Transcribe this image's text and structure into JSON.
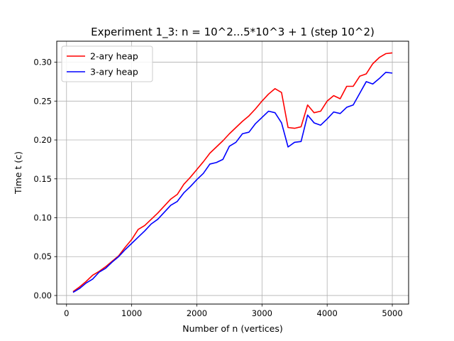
{
  "chart_data": {
    "type": "line",
    "title": "Experiment 1_3: n = 10^2...5*10^3 + 1 (step 10^2)",
    "xlabel": "Number of n (vertices)",
    "ylabel": "Time t (c)",
    "xlim": [
      -150,
      5250
    ],
    "ylim": [
      -0.011,
      0.327
    ],
    "xticks": [
      0,
      1000,
      2000,
      3000,
      4000,
      5000
    ],
    "yticks": [
      0.0,
      0.05,
      0.1,
      0.15,
      0.2,
      0.25,
      0.3
    ],
    "xtick_labels": [
      "0",
      "1000",
      "2000",
      "3000",
      "4000",
      "5000"
    ],
    "ytick_labels": [
      "0.00",
      "0.05",
      "0.10",
      "0.15",
      "0.20",
      "0.25",
      "0.30"
    ],
    "grid": true,
    "legend_position": "top-left",
    "x": [
      100,
      200,
      300,
      400,
      500,
      600,
      700,
      800,
      900,
      1000,
      1100,
      1200,
      1300,
      1400,
      1500,
      1600,
      1700,
      1800,
      1900,
      2000,
      2100,
      2200,
      2300,
      2400,
      2500,
      2600,
      2700,
      2800,
      2900,
      3000,
      3100,
      3200,
      3300,
      3400,
      3500,
      3600,
      3700,
      3800,
      3900,
      4000,
      4100,
      4200,
      4300,
      4400,
      4500,
      4600,
      4700,
      4800,
      4900,
      5000
    ],
    "series": [
      {
        "name": "2-ary heap",
        "color": "#ff0000",
        "values": [
          0.005,
          0.011,
          0.018,
          0.026,
          0.031,
          0.037,
          0.044,
          0.051,
          0.062,
          0.072,
          0.085,
          0.09,
          0.098,
          0.106,
          0.115,
          0.124,
          0.13,
          0.143,
          0.152,
          0.162,
          0.172,
          0.183,
          0.191,
          0.199,
          0.208,
          0.216,
          0.224,
          0.231,
          0.24,
          0.25,
          0.259,
          0.266,
          0.261,
          0.216,
          0.215,
          0.217,
          0.245,
          0.235,
          0.237,
          0.25,
          0.257,
          0.253,
          0.269,
          0.269,
          0.282,
          0.285,
          0.298,
          0.306,
          0.311,
          0.312
        ]
      },
      {
        "name": "3-ary heap",
        "color": "#0000ff",
        "values": [
          0.004,
          0.009,
          0.016,
          0.021,
          0.03,
          0.035,
          0.043,
          0.05,
          0.059,
          0.067,
          0.075,
          0.083,
          0.092,
          0.098,
          0.107,
          0.116,
          0.121,
          0.132,
          0.14,
          0.149,
          0.157,
          0.169,
          0.171,
          0.175,
          0.192,
          0.197,
          0.208,
          0.21,
          0.221,
          0.229,
          0.237,
          0.235,
          0.222,
          0.191,
          0.197,
          0.198,
          0.232,
          0.222,
          0.219,
          0.227,
          0.236,
          0.234,
          0.242,
          0.245,
          0.26,
          0.275,
          0.272,
          0.279,
          0.287,
          0.286
        ]
      }
    ]
  }
}
